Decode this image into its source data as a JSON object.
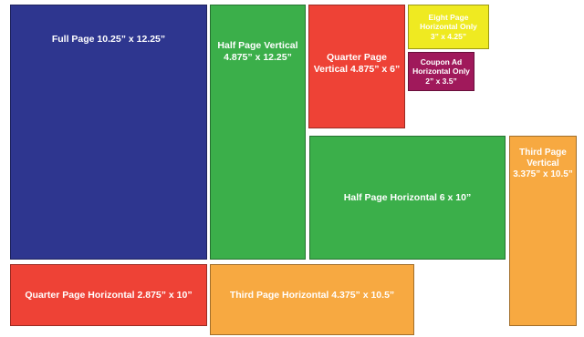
{
  "colors": {
    "navy": "#2E368F",
    "green": "#3BAF4A",
    "red": "#EE4236",
    "yellow": "#EFEA21",
    "purple": "#A0195B",
    "orange": "#F7A941"
  },
  "blocks": {
    "full_page": "Full Page 10.25” x 12.25”",
    "half_vertical": "Half Page Vertical\n4.875” x 12.25”",
    "quarter_vertical": "Quarter Page\nVertical 4.875” x 6”",
    "eighth_horizontal": "Eight Page\nHorizontal Only\n3” x 4.25”",
    "coupon_ad": "Coupon Ad\nHorizontal Only\n2” x 3.5”",
    "half_horizontal": "Half Page Horizontal 6 x 10”",
    "third_vertical": "Third Page\nVertical\n3.375” x 10.5”",
    "quarter_horizontal": "Quarter Page Horizontal 2.875” x 10”",
    "third_horizontal": "Third Page Horizontal 4.375” x 10.5”"
  }
}
